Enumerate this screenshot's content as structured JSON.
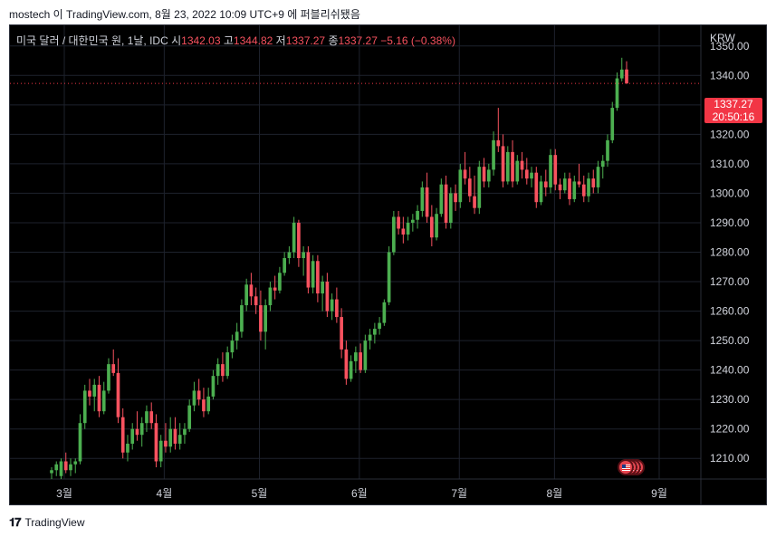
{
  "header": {
    "text": "mostech 이 TradingView.com, 8월 23, 2022 10:09 UTC+9 에 퍼블리쉬됐음"
  },
  "legend": {
    "symbol": "미국 달러 / 대한민국 원, 1날, IDC",
    "open_label": "시",
    "open": "1342.03",
    "high_label": "고",
    "high": "1344.82",
    "low_label": "저",
    "low": "1337.27",
    "close_label": "종",
    "close": "1337.27",
    "change": "−5.16 (−0.38%)"
  },
  "price_axis": {
    "currency": "KRW"
  },
  "last_price": {
    "price": "1337.27",
    "countdown": "20:50:16"
  },
  "footer": {
    "logo": "𝟏𝟕",
    "brand": "TradingView"
  },
  "colors": {
    "up": "#26a69a",
    "up_body": "#4caf50",
    "down": "#f7525f",
    "background": "#000000",
    "grid": "#1e222d",
    "axis_text": "#d1d4dc"
  },
  "chart_data": {
    "type": "candlestick",
    "interval": "1 day",
    "ylim": [
      1203,
      1357
    ],
    "y_ticks": [
      "1210.00",
      "1220.00",
      "1230.00",
      "1240.00",
      "1250.00",
      "1260.00",
      "1270.00",
      "1280.00",
      "1290.00",
      "1300.00",
      "1310.00",
      "1320.00",
      "1330.00",
      "1340.00",
      "1350.00"
    ],
    "x_ticks": [
      "3월",
      "4월",
      "5월",
      "6월",
      "7월",
      "8월",
      "9월"
    ],
    "x_tick_index": [
      3,
      24,
      44,
      65,
      86,
      106,
      128
    ],
    "index_range": [
      0,
      137
    ],
    "current_price": 1337.27,
    "candles": [
      {
        "o": 1205,
        "h": 1207,
        "l": 1203,
        "c": 1206
      },
      {
        "o": 1206,
        "h": 1209,
        "l": 1204,
        "c": 1208
      },
      {
        "o": 1204,
        "h": 1210,
        "l": 1203,
        "c": 1209
      },
      {
        "o": 1209,
        "h": 1212,
        "l": 1205,
        "c": 1206
      },
      {
        "o": 1206,
        "h": 1210,
        "l": 1204,
        "c": 1208
      },
      {
        "o": 1208,
        "h": 1210,
        "l": 1205,
        "c": 1209
      },
      {
        "o": 1209,
        "h": 1225,
        "l": 1208,
        "c": 1222
      },
      {
        "o": 1222,
        "h": 1235,
        "l": 1220,
        "c": 1233
      },
      {
        "o": 1233,
        "h": 1237,
        "l": 1228,
        "c": 1231
      },
      {
        "o": 1231,
        "h": 1237,
        "l": 1226,
        "c": 1235
      },
      {
        "o": 1235,
        "h": 1238,
        "l": 1224,
        "c": 1226
      },
      {
        "o": 1226,
        "h": 1236,
        "l": 1225,
        "c": 1233
      },
      {
        "o": 1233,
        "h": 1244,
        "l": 1232,
        "c": 1242
      },
      {
        "o": 1242,
        "h": 1247,
        "l": 1238,
        "c": 1239
      },
      {
        "o": 1239,
        "h": 1244,
        "l": 1222,
        "c": 1224
      },
      {
        "o": 1224,
        "h": 1227,
        "l": 1210,
        "c": 1212
      },
      {
        "o": 1212,
        "h": 1218,
        "l": 1209,
        "c": 1215
      },
      {
        "o": 1215,
        "h": 1222,
        "l": 1213,
        "c": 1220
      },
      {
        "o": 1220,
        "h": 1226,
        "l": 1216,
        "c": 1218
      },
      {
        "o": 1218,
        "h": 1224,
        "l": 1214,
        "c": 1222
      },
      {
        "o": 1222,
        "h": 1228,
        "l": 1219,
        "c": 1226
      },
      {
        "o": 1226,
        "h": 1229,
        "l": 1220,
        "c": 1222
      },
      {
        "o": 1222,
        "h": 1225,
        "l": 1207,
        "c": 1209
      },
      {
        "o": 1209,
        "h": 1218,
        "l": 1207,
        "c": 1216
      },
      {
        "o": 1216,
        "h": 1222,
        "l": 1212,
        "c": 1214
      },
      {
        "o": 1214,
        "h": 1224,
        "l": 1212,
        "c": 1220
      },
      {
        "o": 1220,
        "h": 1224,
        "l": 1213,
        "c": 1215
      },
      {
        "o": 1215,
        "h": 1222,
        "l": 1213,
        "c": 1218
      },
      {
        "o": 1218,
        "h": 1222,
        "l": 1215,
        "c": 1220
      },
      {
        "o": 1220,
        "h": 1230,
        "l": 1219,
        "c": 1228
      },
      {
        "o": 1228,
        "h": 1236,
        "l": 1226,
        "c": 1233
      },
      {
        "o": 1233,
        "h": 1237,
        "l": 1228,
        "c": 1230
      },
      {
        "o": 1230,
        "h": 1234,
        "l": 1224,
        "c": 1226
      },
      {
        "o": 1226,
        "h": 1234,
        "l": 1225,
        "c": 1231
      },
      {
        "o": 1231,
        "h": 1240,
        "l": 1230,
        "c": 1238
      },
      {
        "o": 1238,
        "h": 1244,
        "l": 1235,
        "c": 1242
      },
      {
        "o": 1242,
        "h": 1246,
        "l": 1236,
        "c": 1238
      },
      {
        "o": 1238,
        "h": 1248,
        "l": 1237,
        "c": 1246
      },
      {
        "o": 1246,
        "h": 1252,
        "l": 1244,
        "c": 1250
      },
      {
        "o": 1250,
        "h": 1256,
        "l": 1247,
        "c": 1253
      },
      {
        "o": 1253,
        "h": 1264,
        "l": 1251,
        "c": 1262
      },
      {
        "o": 1262,
        "h": 1271,
        "l": 1260,
        "c": 1269
      },
      {
        "o": 1269,
        "h": 1273,
        "l": 1262,
        "c": 1265
      },
      {
        "o": 1265,
        "h": 1268,
        "l": 1259,
        "c": 1262
      },
      {
        "o": 1262,
        "h": 1267,
        "l": 1250,
        "c": 1253
      },
      {
        "o": 1253,
        "h": 1264,
        "l": 1247,
        "c": 1262
      },
      {
        "o": 1262,
        "h": 1270,
        "l": 1260,
        "c": 1268
      },
      {
        "o": 1268,
        "h": 1272,
        "l": 1264,
        "c": 1267
      },
      {
        "o": 1267,
        "h": 1275,
        "l": 1266,
        "c": 1273
      },
      {
        "o": 1273,
        "h": 1280,
        "l": 1272,
        "c": 1278
      },
      {
        "o": 1278,
        "h": 1282,
        "l": 1276,
        "c": 1280
      },
      {
        "o": 1280,
        "h": 1292,
        "l": 1278,
        "c": 1290
      },
      {
        "o": 1290,
        "h": 1291,
        "l": 1275,
        "c": 1278
      },
      {
        "o": 1278,
        "h": 1282,
        "l": 1272,
        "c": 1280
      },
      {
        "o": 1280,
        "h": 1282,
        "l": 1266,
        "c": 1268
      },
      {
        "o": 1268,
        "h": 1279,
        "l": 1266,
        "c": 1277
      },
      {
        "o": 1277,
        "h": 1279,
        "l": 1263,
        "c": 1266
      },
      {
        "o": 1266,
        "h": 1272,
        "l": 1260,
        "c": 1270
      },
      {
        "o": 1270,
        "h": 1273,
        "l": 1258,
        "c": 1260
      },
      {
        "o": 1260,
        "h": 1266,
        "l": 1257,
        "c": 1264
      },
      {
        "o": 1264,
        "h": 1268,
        "l": 1256,
        "c": 1258
      },
      {
        "o": 1258,
        "h": 1261,
        "l": 1244,
        "c": 1247
      },
      {
        "o": 1247,
        "h": 1250,
        "l": 1235,
        "c": 1237
      },
      {
        "o": 1237,
        "h": 1245,
        "l": 1236,
        "c": 1243
      },
      {
        "o": 1243,
        "h": 1248,
        "l": 1239,
        "c": 1246
      },
      {
        "o": 1246,
        "h": 1249,
        "l": 1239,
        "c": 1240
      },
      {
        "o": 1240,
        "h": 1252,
        "l": 1239,
        "c": 1250
      },
      {
        "o": 1250,
        "h": 1254,
        "l": 1247,
        "c": 1252
      },
      {
        "o": 1252,
        "h": 1256,
        "l": 1249,
        "c": 1254
      },
      {
        "o": 1254,
        "h": 1258,
        "l": 1252,
        "c": 1256
      },
      {
        "o": 1256,
        "h": 1264,
        "l": 1255,
        "c": 1263
      },
      {
        "o": 1263,
        "h": 1282,
        "l": 1262,
        "c": 1280
      },
      {
        "o": 1280,
        "h": 1294,
        "l": 1279,
        "c": 1292
      },
      {
        "o": 1292,
        "h": 1294,
        "l": 1286,
        "c": 1288
      },
      {
        "o": 1288,
        "h": 1292,
        "l": 1283,
        "c": 1286
      },
      {
        "o": 1286,
        "h": 1292,
        "l": 1284,
        "c": 1290
      },
      {
        "o": 1290,
        "h": 1293,
        "l": 1287,
        "c": 1291
      },
      {
        "o": 1291,
        "h": 1296,
        "l": 1288,
        "c": 1294
      },
      {
        "o": 1294,
        "h": 1304,
        "l": 1292,
        "c": 1302
      },
      {
        "o": 1302,
        "h": 1307,
        "l": 1290,
        "c": 1292
      },
      {
        "o": 1292,
        "h": 1296,
        "l": 1282,
        "c": 1285
      },
      {
        "o": 1285,
        "h": 1295,
        "l": 1284,
        "c": 1293
      },
      {
        "o": 1293,
        "h": 1305,
        "l": 1292,
        "c": 1303
      },
      {
        "o": 1303,
        "h": 1306,
        "l": 1288,
        "c": 1290
      },
      {
        "o": 1290,
        "h": 1302,
        "l": 1288,
        "c": 1300
      },
      {
        "o": 1300,
        "h": 1303,
        "l": 1294,
        "c": 1297
      },
      {
        "o": 1297,
        "h": 1310,
        "l": 1295,
        "c": 1308
      },
      {
        "o": 1308,
        "h": 1314,
        "l": 1303,
        "c": 1305
      },
      {
        "o": 1305,
        "h": 1309,
        "l": 1297,
        "c": 1299
      },
      {
        "o": 1299,
        "h": 1306,
        "l": 1293,
        "c": 1295
      },
      {
        "o": 1295,
        "h": 1311,
        "l": 1293,
        "c": 1309
      },
      {
        "o": 1309,
        "h": 1312,
        "l": 1302,
        "c": 1304
      },
      {
        "o": 1304,
        "h": 1310,
        "l": 1302,
        "c": 1308
      },
      {
        "o": 1308,
        "h": 1321,
        "l": 1306,
        "c": 1318
      },
      {
        "o": 1318,
        "h": 1329,
        "l": 1314,
        "c": 1316
      },
      {
        "o": 1316,
        "h": 1320,
        "l": 1302,
        "c": 1304
      },
      {
        "o": 1304,
        "h": 1316,
        "l": 1303,
        "c": 1314
      },
      {
        "o": 1314,
        "h": 1318,
        "l": 1302,
        "c": 1304
      },
      {
        "o": 1304,
        "h": 1313,
        "l": 1303,
        "c": 1311
      },
      {
        "o": 1311,
        "h": 1314,
        "l": 1305,
        "c": 1308
      },
      {
        "o": 1308,
        "h": 1312,
        "l": 1303,
        "c": 1305
      },
      {
        "o": 1305,
        "h": 1309,
        "l": 1302,
        "c": 1307
      },
      {
        "o": 1307,
        "h": 1309,
        "l": 1295,
        "c": 1297
      },
      {
        "o": 1297,
        "h": 1306,
        "l": 1296,
        "c": 1304
      },
      {
        "o": 1304,
        "h": 1308,
        "l": 1299,
        "c": 1302
      },
      {
        "o": 1302,
        "h": 1315,
        "l": 1300,
        "c": 1313
      },
      {
        "o": 1313,
        "h": 1315,
        "l": 1301,
        "c": 1303
      },
      {
        "o": 1303,
        "h": 1305,
        "l": 1298,
        "c": 1301
      },
      {
        "o": 1301,
        "h": 1307,
        "l": 1300,
        "c": 1305
      },
      {
        "o": 1305,
        "h": 1307,
        "l": 1296,
        "c": 1298
      },
      {
        "o": 1298,
        "h": 1306,
        "l": 1297,
        "c": 1304
      },
      {
        "o": 1304,
        "h": 1310,
        "l": 1302,
        "c": 1303
      },
      {
        "o": 1303,
        "h": 1306,
        "l": 1297,
        "c": 1299
      },
      {
        "o": 1299,
        "h": 1307,
        "l": 1297,
        "c": 1305
      },
      {
        "o": 1305,
        "h": 1308,
        "l": 1300,
        "c": 1302
      },
      {
        "o": 1302,
        "h": 1311,
        "l": 1300,
        "c": 1309
      },
      {
        "o": 1309,
        "h": 1313,
        "l": 1305,
        "c": 1311
      },
      {
        "o": 1311,
        "h": 1320,
        "l": 1309,
        "c": 1318
      },
      {
        "o": 1318,
        "h": 1331,
        "l": 1317,
        "c": 1329
      },
      {
        "o": 1329,
        "h": 1341,
        "l": 1328,
        "c": 1339
      },
      {
        "o": 1339,
        "h": 1346,
        "l": 1338,
        "c": 1342
      },
      {
        "o": 1342.03,
        "h": 1344.82,
        "l": 1337.27,
        "c": 1337.27
      }
    ]
  }
}
